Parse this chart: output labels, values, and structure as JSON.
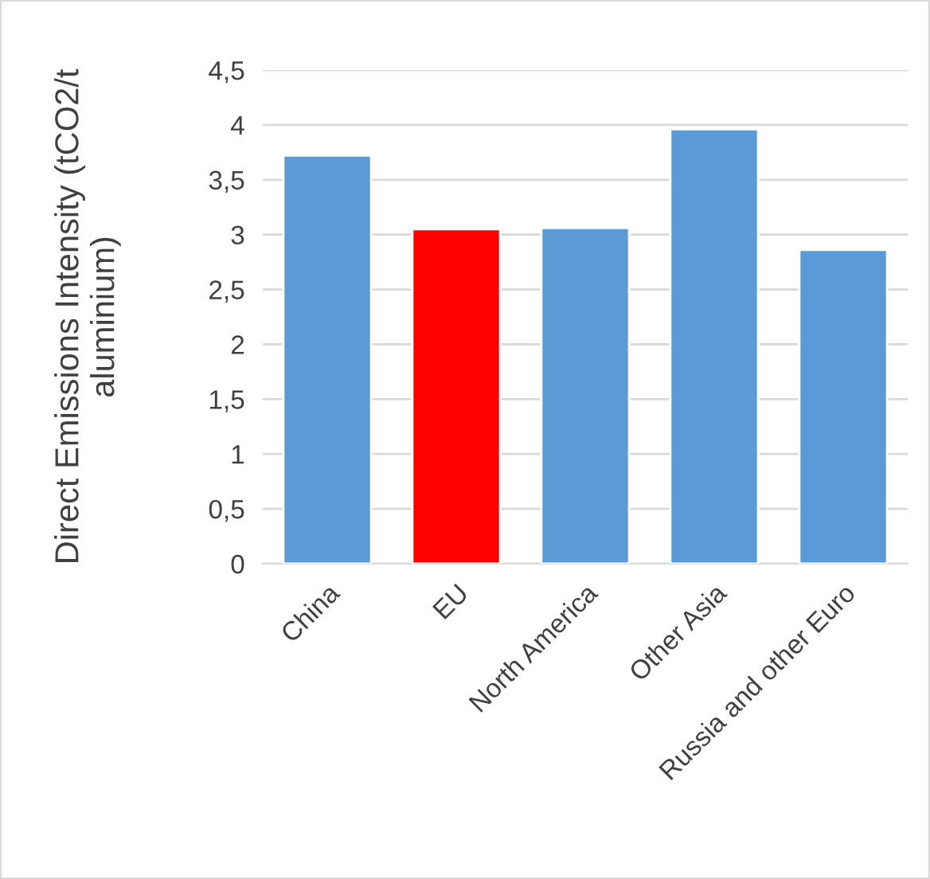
{
  "chart_data": {
    "type": "bar",
    "ylabel": "Direct Emissions Intensity (tCO2/t aluminium)",
    "categories": [
      "China",
      "EU",
      "North America",
      "Other Asia",
      "Russia and other Euro"
    ],
    "values": [
      3.72,
      3.05,
      3.06,
      3.96,
      2.86
    ],
    "colors": [
      "#5b9bd5",
      "#ff0000",
      "#5b9bd5",
      "#5b9bd5",
      "#5b9bd5"
    ],
    "ylim": [
      0,
      4.5
    ],
    "yticks": [
      0,
      {
        "value": 0.5,
        "label": "0,5"
      },
      1,
      {
        "value": 1.5,
        "label": "1,5"
      },
      2,
      {
        "value": 2.5,
        "label": "2,5"
      },
      3,
      {
        "value": 3.5,
        "label": "3,5"
      },
      4,
      {
        "value": 4.5,
        "label": "4,5"
      }
    ],
    "grid": "y"
  }
}
